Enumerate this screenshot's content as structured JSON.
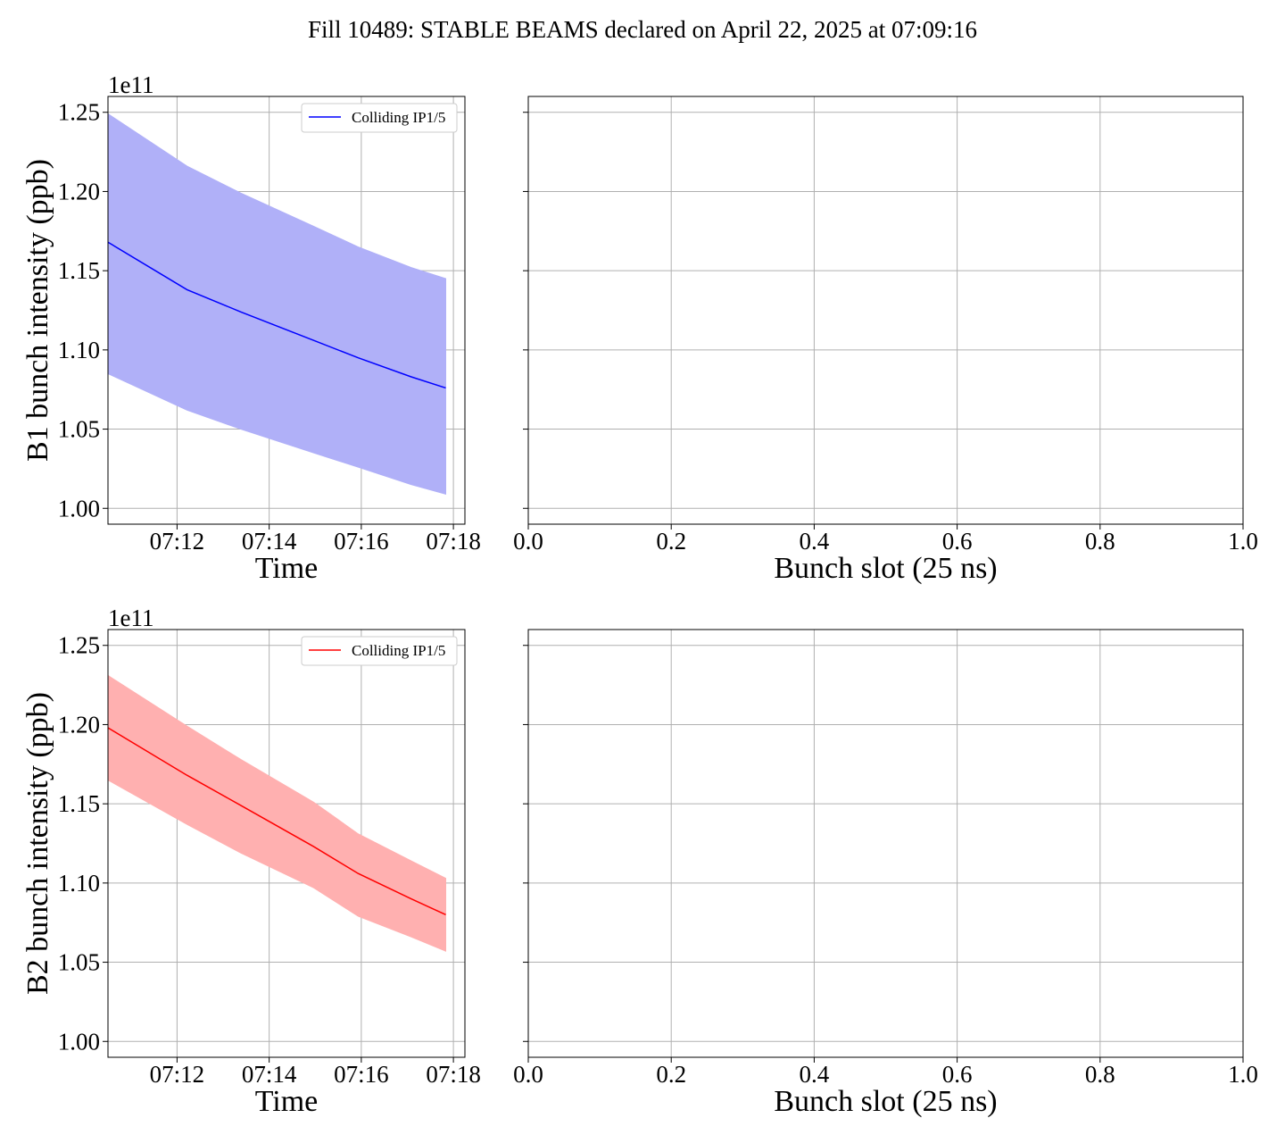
{
  "figure": {
    "title": "Fill 10489: STABLE BEAMS declared on April 22, 2025 at 07:09:16"
  },
  "chart_data": [
    {
      "id": "b1-time",
      "type": "line",
      "xlabel": "Time",
      "ylabel": "B1 bunch intensity (ppb)",
      "y_offset_label": "1e11",
      "xlim": [
        "07:10:30",
        "07:18:15"
      ],
      "ylim": [
        0.99,
        1.26
      ],
      "xticks": [
        "07:12",
        "07:14",
        "07:16",
        "07:18"
      ],
      "yticks": [
        "1.00",
        "1.05",
        "1.10",
        "1.15",
        "1.20",
        "1.25"
      ],
      "grid": true,
      "legend_position": "top-right",
      "series": [
        {
          "name": "Colliding IP1/5",
          "color": "#0000ff",
          "band_color": "#b0b0f8",
          "x": [
            "07:10:30",
            "07:12:13",
            "07:13:23",
            "07:14:58",
            "07:15:56",
            "07:17:05",
            "07:17:50"
          ],
          "y": [
            1.168,
            1.138,
            1.124,
            1.106,
            1.095,
            1.083,
            1.076
          ],
          "lower": [
            1.085,
            1.062,
            1.05,
            1.035,
            1.026,
            1.015,
            1.009
          ],
          "upper": [
            1.249,
            1.216,
            1.199,
            1.178,
            1.165,
            1.152,
            1.145
          ]
        }
      ]
    },
    {
      "id": "b1-slot",
      "type": "scatter",
      "xlabel": "Bunch slot (25 ns)",
      "ylabel": "",
      "xlim": [
        0,
        1
      ],
      "ylim": [
        0.99,
        1.26
      ],
      "xticks": [
        "0.0",
        "0.2",
        "0.4",
        "0.6",
        "0.8",
        "1.0"
      ],
      "grid": true,
      "series": []
    },
    {
      "id": "b2-time",
      "type": "line",
      "xlabel": "Time",
      "ylabel": "B2 bunch intensity (ppb)",
      "y_offset_label": "1e11",
      "xlim": [
        "07:10:30",
        "07:18:15"
      ],
      "ylim": [
        0.99,
        1.26
      ],
      "xticks": [
        "07:12",
        "07:14",
        "07:16",
        "07:18"
      ],
      "yticks": [
        "1.00",
        "1.05",
        "1.10",
        "1.15",
        "1.20",
        "1.25"
      ],
      "grid": true,
      "legend_position": "top-right",
      "series": [
        {
          "name": "Colliding IP1/5",
          "color": "#ff0000",
          "band_color": "#ffb0b0",
          "x": [
            "07:10:30",
            "07:12:13",
            "07:13:23",
            "07:14:58",
            "07:15:56",
            "07:17:05",
            "07:17:50"
          ],
          "y": [
            1.198,
            1.168,
            1.149,
            1.123,
            1.106,
            1.09,
            1.08
          ],
          "lower": [
            1.165,
            1.137,
            1.119,
            1.097,
            1.079,
            1.066,
            1.057
          ],
          "upper": [
            1.231,
            1.199,
            1.178,
            1.151,
            1.131,
            1.114,
            1.103
          ]
        }
      ]
    },
    {
      "id": "b2-slot",
      "type": "scatter",
      "xlabel": "Bunch slot (25 ns)",
      "ylabel": "",
      "xlim": [
        0,
        1
      ],
      "ylim": [
        0.99,
        1.26
      ],
      "xticks": [
        "0.0",
        "0.2",
        "0.4",
        "0.6",
        "0.8",
        "1.0"
      ],
      "grid": true,
      "series": []
    }
  ]
}
